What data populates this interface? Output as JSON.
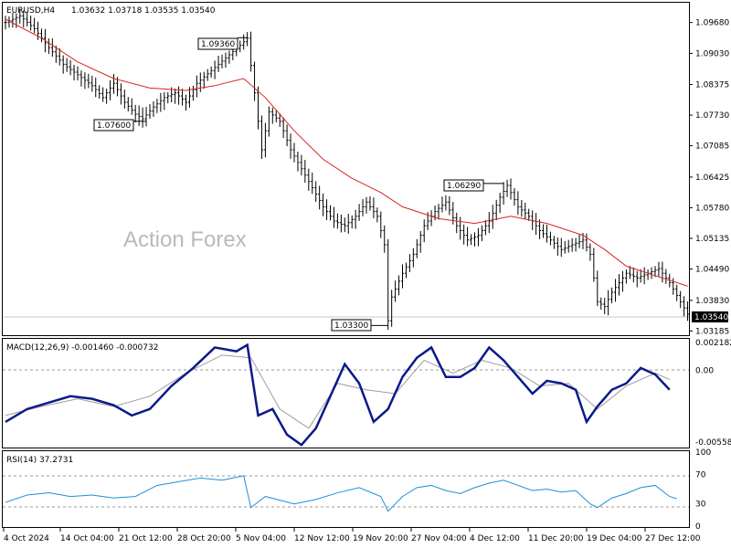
{
  "chart_data": {
    "type": "candlestick",
    "symbol_label": "EURUSD,H4",
    "ohlc_header": "1.03632 1.03718 1.03535 1.03540",
    "watermark": "Action Forex",
    "price_axis": {
      "ticks": [
        "1.09680",
        "1.09030",
        "1.08375",
        "1.07730",
        "1.07085",
        "1.06425",
        "1.05780",
        "1.05135",
        "1.04490",
        "1.03830",
        "1.03185"
      ],
      "last_price": "1.03540",
      "ylim": [
        1.03,
        1.1
      ]
    },
    "time_axis": {
      "labels": [
        "4 Oct 2024",
        "14 Oct 04:00",
        "21 Oct 12:00",
        "28 Oct 20:00",
        "5 Nov 04:00",
        "12 Nov 12:00",
        "19 Nov 20:00",
        "27 Nov 04:00",
        "4 Dec 12:00",
        "11 Dec 20:00",
        "19 Dec 04:00",
        "27 Dec 12:00"
      ]
    },
    "annotations": [
      {
        "label": "1.09360",
        "value": 1.0936
      },
      {
        "label": "1.07600",
        "value": 1.076
      },
      {
        "label": "1.06290",
        "value": 1.0629
      },
      {
        "label": "1.03300",
        "value": 1.033
      }
    ],
    "price_path": [
      [
        0,
        1.0968
      ],
      [
        4,
        1.0982
      ],
      [
        8,
        1.0955
      ],
      [
        12,
        1.0915
      ],
      [
        16,
        1.088
      ],
      [
        20,
        1.0858
      ],
      [
        24,
        1.0835
      ],
      [
        27,
        1.081
      ],
      [
        30,
        1.084
      ],
      [
        33,
        1.08
      ],
      [
        36,
        1.0775
      ],
      [
        38,
        1.0765
      ],
      [
        41,
        1.079
      ],
      [
        44,
        1.081
      ],
      [
        47,
        1.082
      ],
      [
        50,
        1.08
      ],
      [
        53,
        1.084
      ],
      [
        56,
        1.086
      ],
      [
        59,
        1.088
      ],
      [
        62,
        1.09
      ],
      [
        65,
        1.092
      ],
      [
        67,
        1.0935
      ],
      [
        69,
        1.082
      ],
      [
        71,
        1.07
      ],
      [
        73,
        1.078
      ],
      [
        76,
        1.076
      ],
      [
        79,
        1.07
      ],
      [
        82,
        1.066
      ],
      [
        85,
        1.062
      ],
      [
        88,
        1.058
      ],
      [
        91,
        1.055
      ],
      [
        94,
        1.054
      ],
      [
        97,
        1.056
      ],
      [
        100,
        1.059
      ],
      [
        103,
        1.056
      ],
      [
        105,
        1.05
      ],
      [
        106,
        1.034
      ],
      [
        107,
        1.039
      ],
      [
        110,
        1.044
      ],
      [
        113,
        1.048
      ],
      [
        116,
        1.054
      ],
      [
        119,
        1.057
      ],
      [
        122,
        1.059
      ],
      [
        125,
        1.054
      ],
      [
        128,
        1.051
      ],
      [
        131,
        1.052
      ],
      [
        134,
        1.055
      ],
      [
        137,
        1.06
      ],
      [
        139,
        1.0625
      ],
      [
        142,
        1.058
      ],
      [
        145,
        1.056
      ],
      [
        148,
        1.053
      ],
      [
        151,
        1.051
      ],
      [
        154,
        1.049
      ],
      [
        157,
        1.05
      ],
      [
        160,
        1.051
      ],
      [
        162,
        1.048
      ],
      [
        164,
        1.038
      ],
      [
        166,
        1.037
      ],
      [
        168,
        1.04
      ],
      [
        170,
        1.042
      ],
      [
        172,
        1.044
      ],
      [
        175,
        1.043
      ],
      [
        178,
        1.044
      ],
      [
        181,
        1.045
      ],
      [
        184,
        1.042
      ],
      [
        187,
        1.038
      ],
      [
        189,
        1.0354
      ]
    ],
    "ma_path": [
      [
        0,
        1.0975
      ],
      [
        10,
        1.0935
      ],
      [
        20,
        1.0885
      ],
      [
        30,
        1.085
      ],
      [
        40,
        1.083
      ],
      [
        50,
        1.0825
      ],
      [
        58,
        1.0835
      ],
      [
        66,
        1.085
      ],
      [
        72,
        1.081
      ],
      [
        80,
        1.074
      ],
      [
        88,
        1.068
      ],
      [
        96,
        1.064
      ],
      [
        104,
        1.061
      ],
      [
        110,
        1.058
      ],
      [
        120,
        1.0555
      ],
      [
        130,
        1.0545
      ],
      [
        140,
        1.056
      ],
      [
        150,
        1.0545
      ],
      [
        160,
        1.052
      ],
      [
        166,
        1.049
      ],
      [
        172,
        1.0455
      ],
      [
        180,
        1.0435
      ],
      [
        189,
        1.0413
      ]
    ],
    "macd": {
      "label": "MACD(12,26,9) -0.001460 -0.000732",
      "ticks": [
        "0.002182",
        "0.00",
        "-0.005584"
      ],
      "ylim": [
        -0.006,
        0.0024
      ],
      "macd_path": [
        [
          0,
          -0.004
        ],
        [
          6,
          -0.003
        ],
        [
          12,
          -0.0025
        ],
        [
          18,
          -0.002
        ],
        [
          24,
          -0.0022
        ],
        [
          30,
          -0.0027
        ],
        [
          35,
          -0.0035
        ],
        [
          40,
          -0.003
        ],
        [
          46,
          -0.0012
        ],
        [
          52,
          0.0002
        ],
        [
          58,
          0.0018
        ],
        [
          64,
          0.0015
        ],
        [
          67,
          0.002
        ],
        [
          70,
          -0.0035
        ],
        [
          74,
          -0.003
        ],
        [
          78,
          -0.005
        ],
        [
          82,
          -0.0058
        ],
        [
          86,
          -0.0045
        ],
        [
          90,
          -0.002
        ],
        [
          94,
          0.0005
        ],
        [
          98,
          -0.001
        ],
        [
          102,
          -0.004
        ],
        [
          106,
          -0.003
        ],
        [
          110,
          -0.0005
        ],
        [
          114,
          0.001
        ],
        [
          118,
          0.0018
        ],
        [
          122,
          -0.0005
        ],
        [
          126,
          -0.0005
        ],
        [
          130,
          0.0002
        ],
        [
          134,
          0.0018
        ],
        [
          138,
          0.0008
        ],
        [
          142,
          -0.0005
        ],
        [
          146,
          -0.0018
        ],
        [
          150,
          -0.0008
        ],
        [
          154,
          -0.001
        ],
        [
          158,
          -0.0015
        ],
        [
          161,
          -0.004
        ],
        [
          164,
          -0.0028
        ],
        [
          168,
          -0.0015
        ],
        [
          172,
          -0.001
        ],
        [
          176,
          0.0002
        ],
        [
          180,
          -0.0003
        ],
        [
          184,
          -0.0015
        ]
      ],
      "signal_path": [
        [
          0,
          -0.0035
        ],
        [
          10,
          -0.0028
        ],
        [
          20,
          -0.0022
        ],
        [
          30,
          -0.0028
        ],
        [
          40,
          -0.002
        ],
        [
          50,
          -0.0002
        ],
        [
          60,
          0.0012
        ],
        [
          68,
          0.001
        ],
        [
          76,
          -0.003
        ],
        [
          84,
          -0.0045
        ],
        [
          92,
          -0.001
        ],
        [
          100,
          -0.0015
        ],
        [
          108,
          -0.0018
        ],
        [
          116,
          0.0008
        ],
        [
          124,
          -0.0002
        ],
        [
          132,
          0.0008
        ],
        [
          140,
          0.0002
        ],
        [
          148,
          -0.0012
        ],
        [
          156,
          -0.001
        ],
        [
          164,
          -0.003
        ],
        [
          172,
          -0.0012
        ],
        [
          180,
          -0.0002
        ],
        [
          184,
          -0.0007
        ]
      ]
    },
    "rsi": {
      "label": "RSI(14) 37.2731",
      "ticks": [
        "100",
        "70",
        "30",
        "0"
      ],
      "levels": [
        70,
        30
      ],
      "path": [
        [
          0,
          32
        ],
        [
          6,
          42
        ],
        [
          12,
          45
        ],
        [
          18,
          40
        ],
        [
          24,
          42
        ],
        [
          30,
          38
        ],
        [
          36,
          40
        ],
        [
          42,
          55
        ],
        [
          48,
          60
        ],
        [
          54,
          65
        ],
        [
          60,
          62
        ],
        [
          66,
          68
        ],
        [
          68,
          25
        ],
        [
          72,
          40
        ],
        [
          76,
          35
        ],
        [
          80,
          30
        ],
        [
          86,
          36
        ],
        [
          92,
          45
        ],
        [
          98,
          52
        ],
        [
          104,
          40
        ],
        [
          106,
          20
        ],
        [
          110,
          40
        ],
        [
          114,
          52
        ],
        [
          118,
          55
        ],
        [
          122,
          48
        ],
        [
          126,
          44
        ],
        [
          130,
          52
        ],
        [
          134,
          58
        ],
        [
          138,
          62
        ],
        [
          142,
          55
        ],
        [
          146,
          48
        ],
        [
          150,
          50
        ],
        [
          154,
          46
        ],
        [
          158,
          48
        ],
        [
          162,
          30
        ],
        [
          164,
          25
        ],
        [
          168,
          38
        ],
        [
          172,
          44
        ],
        [
          176,
          52
        ],
        [
          180,
          55
        ],
        [
          184,
          40
        ],
        [
          186,
          37
        ]
      ]
    }
  }
}
